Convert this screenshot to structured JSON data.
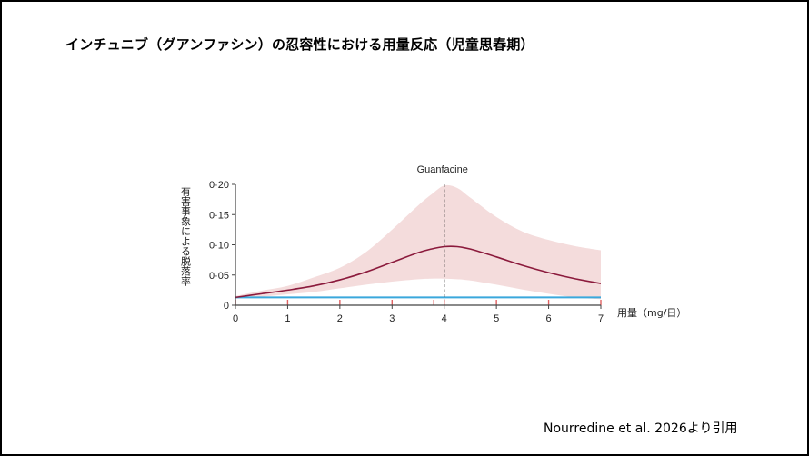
{
  "slide": {
    "title": "インチュニブ（グアンファシン）の忍容性における用量反応（児童思春期）",
    "citation": "Nourredine et al. 2026より引用"
  },
  "chart_data": {
    "type": "line",
    "xlabel": "用量（mg/日）",
    "ylabel": "有害事象による脱落率",
    "x_ticks": [
      "0",
      "1",
      "2",
      "3",
      "4",
      "5",
      "6",
      "7"
    ],
    "y_ticks": [
      "0",
      "0·05",
      "0·10",
      "0·15",
      "0·20"
    ],
    "xlim": [
      0,
      7
    ],
    "ylim": [
      0,
      0.2
    ],
    "annotation": {
      "label": "Guanfacine",
      "x": 4
    },
    "series": [
      {
        "x": [
          0,
          0.5,
          1,
          1.5,
          2,
          2.5,
          3,
          3.5,
          3.75,
          4,
          4.25,
          4.5,
          5,
          5.5,
          6,
          6.5,
          7
        ],
        "y": [
          0.013,
          0.019,
          0.025,
          0.032,
          0.042,
          0.055,
          0.071,
          0.087,
          0.093,
          0.097,
          0.097,
          0.093,
          0.08,
          0.066,
          0.054,
          0.044,
          0.036
        ],
        "lower": [
          0.011,
          0.014,
          0.018,
          0.022,
          0.028,
          0.034,
          0.039,
          0.043,
          0.044,
          0.044,
          0.043,
          0.041,
          0.034,
          0.026,
          0.019,
          0.013,
          0.01
        ],
        "upper": [
          0.015,
          0.024,
          0.032,
          0.046,
          0.062,
          0.088,
          0.125,
          0.165,
          0.183,
          0.198,
          0.194,
          0.178,
          0.146,
          0.122,
          0.108,
          0.098,
          0.091
        ],
        "color": "#8b1a3c",
        "band_color": "#f4dcdc"
      }
    ],
    "baseline": {
      "y": 0.013,
      "color": "#3aa8dc"
    },
    "study_dose_ticks": [
      0,
      1,
      2,
      3,
      3.8,
      4,
      5,
      6,
      7
    ],
    "study_tick_color": "#e06060",
    "grid": false
  }
}
